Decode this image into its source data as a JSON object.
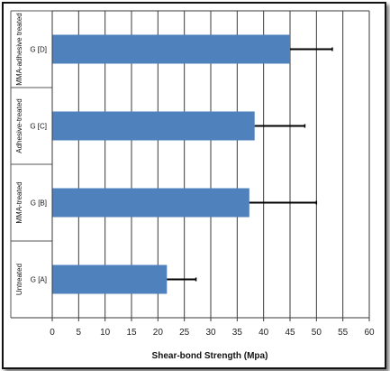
{
  "chart_data": {
    "type": "bar",
    "orientation": "horizontal",
    "groups": [
      "Untreated",
      "MMA-treated",
      "Adhesive-treated",
      "MMA-adhesive treated"
    ],
    "categories": [
      "G [A]",
      "G [B]",
      "G [C]",
      "G [D]"
    ],
    "values": [
      21.7,
      37.3,
      38.3,
      45.0
    ],
    "errors": [
      5.5,
      12.7,
      9.5,
      8.0
    ],
    "xlabel": "Shear-bond Strength (Mpa)",
    "xlim": [
      0,
      60
    ],
    "xticks": [
      "0",
      "5",
      "10",
      "15",
      "20",
      "25",
      "30",
      "35",
      "40",
      "45",
      "50",
      "55",
      "60"
    ],
    "grid": true,
    "legend": "none",
    "bar_color": "#4f81bd"
  }
}
